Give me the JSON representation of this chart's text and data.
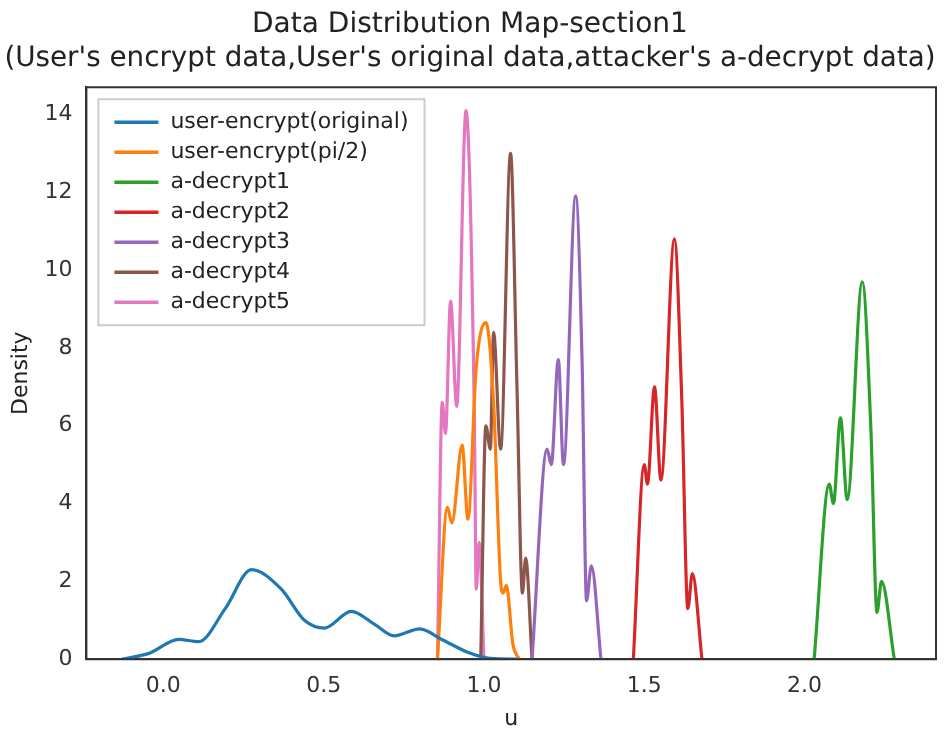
{
  "chart_data": {
    "type": "line",
    "title": "Data Distribution Map-section1",
    "subtitle": "(User's encrypt data,User's original data,attacker's a-decrypt data)",
    "xlabel": "u",
    "ylabel": "Density",
    "xlim": [
      -0.24,
      2.41
    ],
    "ylim": [
      0,
      14.7
    ],
    "xticks": [
      {
        "value": 0,
        "label": "0.0"
      },
      {
        "value": 0.5,
        "label": "0.5"
      },
      {
        "value": 1,
        "label": "1.0"
      },
      {
        "value": 1.5,
        "label": "1.5"
      },
      {
        "value": 2,
        "label": "2.0"
      }
    ],
    "yticks": [
      0,
      2,
      4,
      6,
      8,
      10,
      12,
      14
    ],
    "grid": false,
    "legend": "top left",
    "marker": "none",
    "line_style": "solid",
    "series": [
      {
        "name": "user-encrypt(original)",
        "color": "#1f77b4",
        "x": [
          -0.13,
          -0.045,
          0.048,
          0.11,
          0.193,
          0.275,
          0.368,
          0.44,
          0.503,
          0.586,
          0.658,
          0.72,
          0.8,
          0.87,
          0.958,
          1.02,
          1.1
        ],
        "values": [
          0,
          0.15,
          0.51,
          0.45,
          1.3,
          2.3,
          1.8,
          1.0,
          0.8,
          1.23,
          0.9,
          0.6,
          0.78,
          0.5,
          0.15,
          0.02,
          0
        ]
      },
      {
        "name": "user-encrypt(pi/2)",
        "color": "#ff7f0e",
        "x": [
          0.855,
          0.886,
          0.9,
          0.932,
          0.95,
          0.976,
          1.006,
          1.03,
          1.052,
          1.06,
          1.07,
          1.09,
          1.11
        ],
        "values": [
          0,
          3.9,
          3.5,
          5.5,
          3.6,
          7.5,
          8.65,
          6.6,
          2.0,
          1.7,
          1.9,
          0.4,
          0
        ]
      },
      {
        "name": "a-decrypt1",
        "color": "#2ca02c",
        "x": [
          2.03,
          2.077,
          2.09,
          2.112,
          2.133,
          2.18,
          2.207,
          2.226,
          2.24,
          2.28
        ],
        "values": [
          0,
          4.5,
          4.0,
          6.2,
          4.1,
          9.7,
          5.9,
          1.2,
          2.0,
          0
        ]
      },
      {
        "name": "a-decrypt2",
        "color": "#d62728",
        "x": [
          1.466,
          1.5,
          1.51,
          1.532,
          1.552,
          1.594,
          1.617,
          1.636,
          1.65,
          1.68
        ],
        "values": [
          0,
          5.0,
          4.5,
          7.0,
          4.6,
          10.8,
          6.7,
          1.3,
          2.2,
          0
        ]
      },
      {
        "name": "a-decrypt3",
        "color": "#9467bd",
        "x": [
          1.15,
          1.197,
          1.21,
          1.232,
          1.248,
          1.286,
          1.306,
          1.32,
          1.335,
          1.365
        ],
        "values": [
          0,
          5.4,
          5.0,
          7.7,
          5.0,
          11.9,
          7.7,
          1.5,
          2.4,
          0
        ]
      },
      {
        "name": "a-decrypt4",
        "color": "#8c564b",
        "x": [
          0.99,
          1.006,
          1.02,
          1.03,
          1.052,
          1.083,
          1.103,
          1.12,
          1.13,
          1.15
        ],
        "values": [
          0,
          6.0,
          5.4,
          8.4,
          5.4,
          13.0,
          7.0,
          1.7,
          2.6,
          0
        ]
      },
      {
        "name": "a-decrypt5",
        "color": "#e377c2",
        "x": [
          0.855,
          0.87,
          0.88,
          0.896,
          0.915,
          0.944,
          0.97,
          0.976,
          0.985,
          1.0
        ],
        "values": [
          0,
          6.6,
          5.8,
          9.2,
          6.5,
          14.1,
          6.3,
          1.8,
          3.0,
          0
        ]
      }
    ]
  }
}
